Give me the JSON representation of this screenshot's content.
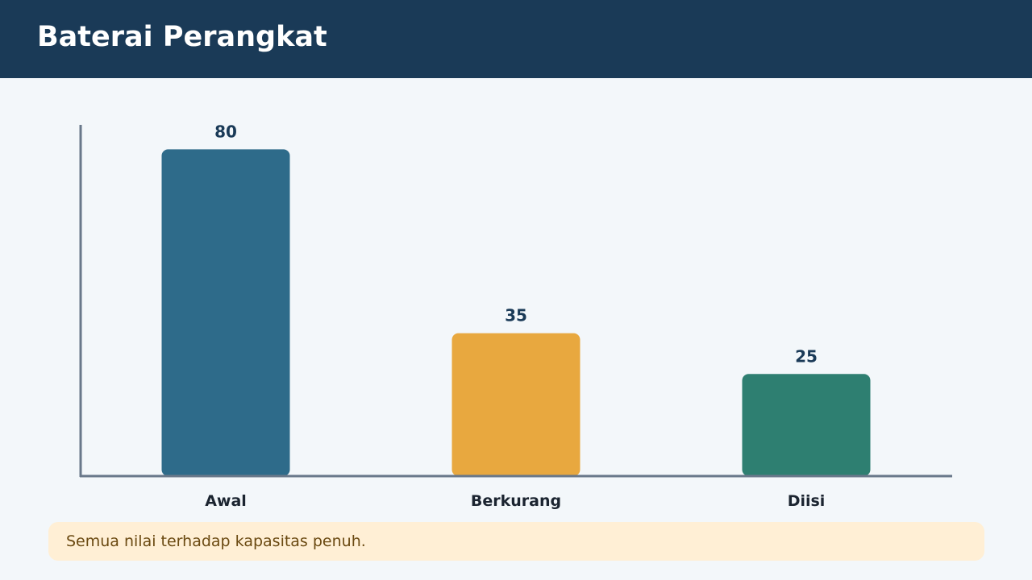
{
  "header": {
    "title": "Baterai Perangkat"
  },
  "chart_data": {
    "type": "bar",
    "title": "Baterai Perangkat",
    "xlabel": "",
    "ylabel": "",
    "categories": [
      "Awal",
      "Berkurang",
      "Diisi"
    ],
    "values": [
      80,
      35,
      25
    ],
    "colors": [
      "#2e6b8a",
      "#e8a83f",
      "#2e7f71"
    ],
    "ylim": [
      0,
      86
    ],
    "grid": false,
    "data_labels": true
  },
  "note": {
    "text": "Semua nilai terhadap kapasitas penuh."
  },
  "colors": {
    "header_bg": "#1a3a57",
    "page_bg": "#f3f7fa",
    "axis": "#69788a",
    "value_label": "#1a3a57",
    "category_label": "#1b2430",
    "note_bg": "#ffefd5",
    "note_text": "#6b4a12"
  }
}
